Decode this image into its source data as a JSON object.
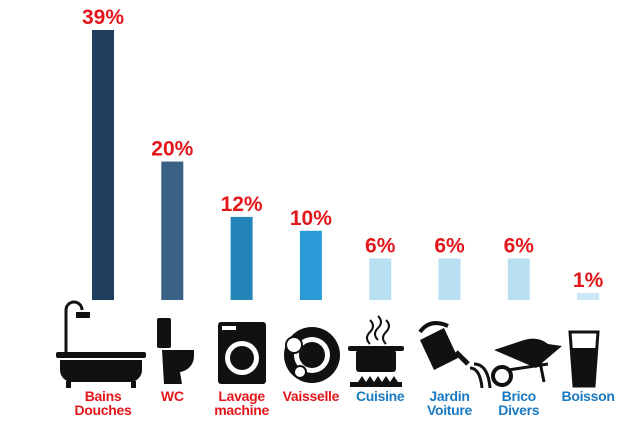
{
  "chart_data": {
    "type": "bar",
    "categories": [
      "Bains\nDouches",
      "WC",
      "Lavage\nmachine",
      "Vaisselle",
      "Cuisine",
      "Jardin\nVoiture",
      "Brico\nDivers",
      "Boisson"
    ],
    "values": [
      39,
      20,
      12,
      10,
      6,
      6,
      6,
      1
    ],
    "value_labels": [
      "39%",
      "20%",
      "12%",
      "10%",
      "6%",
      "6%",
      "6%",
      "1%"
    ],
    "colors": [
      "#1f3d5c",
      "#3a6186",
      "#2485b8",
      "#2a9ad6",
      "#b8dff2",
      "#b8dff2",
      "#b8dff2",
      "#c9e7f6"
    ],
    "label_colors": [
      "#e3161b",
      "#e3161b",
      "#e3161b",
      "#e3161b",
      "#1a7ac0",
      "#1a7ac0",
      "#1a7ac0",
      "#1a7ac0"
    ]
  }
}
